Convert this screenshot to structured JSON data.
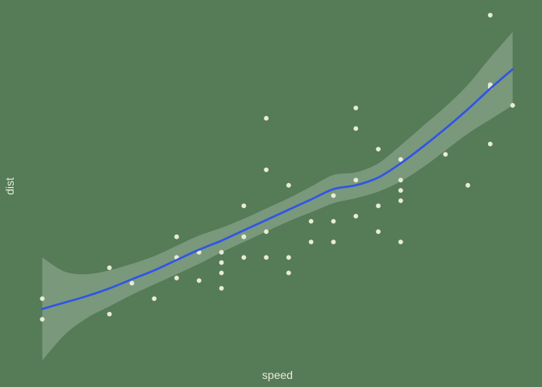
{
  "chart_data": {
    "type": "scatter",
    "title": "",
    "xlabel": "speed",
    "ylabel": "dist",
    "xlim": [
      3.05,
      25.95
    ],
    "ylim": [
      -14.27,
      125.88
    ],
    "grid": false,
    "legend": "none",
    "colors": {
      "background": "#557b57",
      "points": "#e8ecd2",
      "smooth_line": "#2f55e6",
      "confidence_band": "#8aa58b",
      "axis_text": "#e6ead6"
    },
    "points": {
      "x": [
        4,
        4,
        7,
        7,
        8,
        9,
        10,
        10,
        10,
        11,
        11,
        12,
        12,
        12,
        12,
        13,
        13,
        13,
        13,
        14,
        14,
        14,
        14,
        15,
        15,
        15,
        16,
        16,
        17,
        17,
        17,
        18,
        18,
        18,
        18,
        19,
        19,
        19,
        20,
        20,
        20,
        20,
        20,
        22,
        23,
        24,
        24,
        24,
        24,
        25
      ],
      "y": [
        2,
        10,
        4,
        22,
        16,
        10,
        18,
        26,
        34,
        17,
        28,
        14,
        20,
        24,
        28,
        26,
        34,
        34,
        46,
        26,
        36,
        60,
        80,
        20,
        26,
        54,
        32,
        40,
        32,
        40,
        50,
        42,
        56,
        76,
        84,
        36,
        46,
        68,
        32,
        48,
        52,
        56,
        64,
        66,
        54,
        70,
        92,
        93,
        120,
        85
      ]
    },
    "smooth": {
      "method": "loess",
      "x": [
        4,
        5,
        6,
        7,
        8,
        9,
        10,
        11,
        12,
        13,
        14,
        15,
        16,
        17,
        18,
        19,
        20,
        21,
        22,
        23,
        24,
        25
      ],
      "fit": [
        6,
        8.5,
        11,
        14,
        17.5,
        21,
        25,
        29,
        32.5,
        36.5,
        40.5,
        44.5,
        48.5,
        52.5,
        54,
        57,
        62.5,
        69,
        76,
        83.5,
        91.5,
        99
      ],
      "lower": [
        -14,
        -4,
        2.5,
        7,
        11.5,
        15.5,
        19.5,
        23.5,
        28,
        32,
        36,
        40,
        43.5,
        47,
        49,
        51.5,
        55.5,
        61,
        67.5,
        74,
        79.5,
        85
      ],
      "upper": [
        26,
        20.5,
        19.5,
        21,
        23.5,
        26.5,
        30.5,
        34.5,
        37.5,
        41,
        45,
        49,
        53.5,
        58,
        59,
        62.5,
        69.5,
        77,
        84.5,
        93,
        103.5,
        113.5
      ]
    }
  }
}
